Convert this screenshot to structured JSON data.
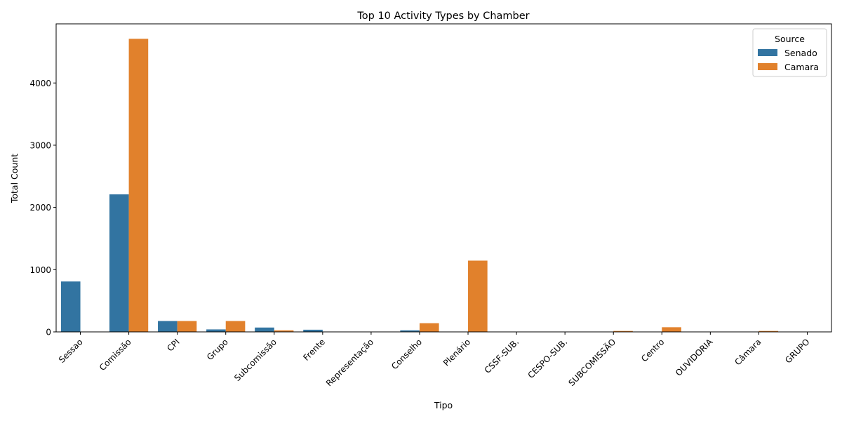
{
  "chart_data": {
    "type": "bar",
    "title": "Top 10 Activity Types by Chamber",
    "xlabel": "Tipo",
    "ylabel": "Total Count",
    "ylim": [
      0,
      4950
    ],
    "yticks": [
      0,
      1000,
      2000,
      3000,
      4000
    ],
    "grid": false,
    "legend": {
      "title": "Source",
      "placement": "top-right"
    },
    "categories": [
      "Sessao",
      "Comissão",
      "CPI",
      "Grupo",
      "Subcomissão",
      "Frente",
      "Representação",
      "Conselho",
      "Plenário",
      "CSSF-SUB.",
      "CESPO-SUB.",
      "SUBCOMISSÃO",
      "Centro",
      "OUVIDORIA",
      "Câmara",
      "GRUPO"
    ],
    "series": [
      {
        "name": "Senado",
        "color": "#3274a1",
        "values": [
          810,
          2210,
          175,
          40,
          70,
          35,
          0,
          25,
          0,
          0,
          0,
          0,
          0,
          0,
          0,
          0
        ]
      },
      {
        "name": "Camara",
        "color": "#e1812c",
        "values": [
          0,
          4710,
          175,
          175,
          25,
          0,
          0,
          140,
          1145,
          5,
          5,
          15,
          75,
          5,
          15,
          5
        ]
      }
    ]
  }
}
